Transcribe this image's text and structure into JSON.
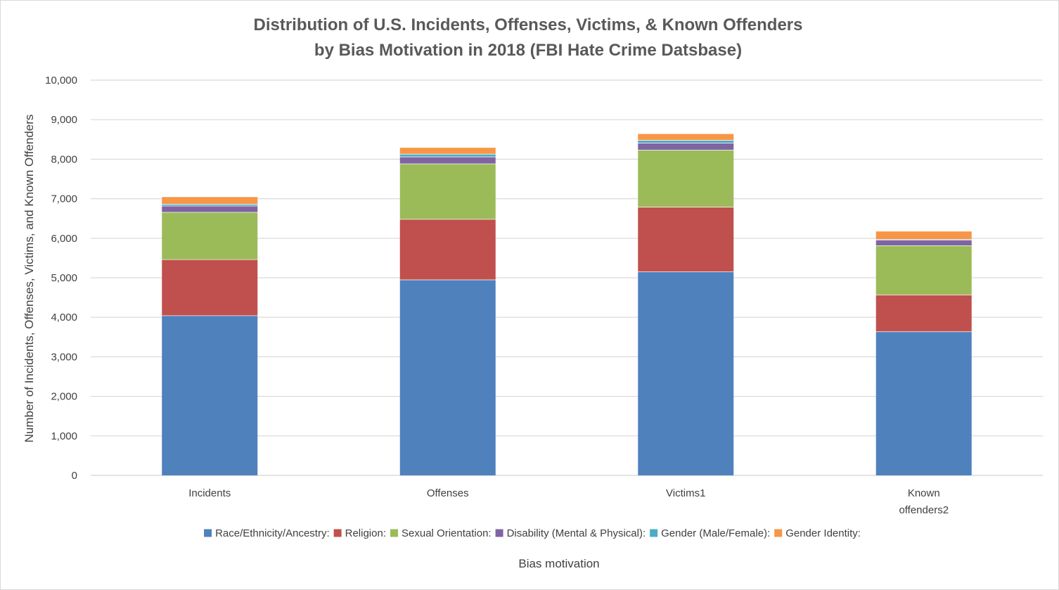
{
  "chart_data": {
    "type": "bar",
    "stacked": true,
    "title": "Distribution of  U.S. Incidents, Offenses, Victims, & Known Offenders",
    "subtitle": "by Bias Motivation in 2018 (FBI Hate Crime Datsbase)",
    "xlabel": "Bias motivation",
    "ylabel": "Number of Incidents, Offenses, Victims, and Known Offenders",
    "ylim": [
      0,
      10000
    ],
    "y_ticks": [
      0,
      1000,
      2000,
      3000,
      4000,
      5000,
      6000,
      7000,
      8000,
      9000,
      10000
    ],
    "y_tick_labels": [
      "0",
      "1,000",
      "2,000",
      "3,000",
      "4,000",
      "5,000",
      "6,000",
      "7,000",
      "8,000",
      "9,000",
      "10,000"
    ],
    "grid": true,
    "legend_position": "bottom",
    "categories": [
      [
        "Incidents"
      ],
      [
        "Offenses"
      ],
      [
        "Victims1"
      ],
      [
        "Known",
        "offenders2"
      ]
    ],
    "series": [
      {
        "name": "Race/Ethnicity/Ancestry:",
        "color": "#4F81BD",
        "values": [
          4047,
          4954,
          5155,
          3641
        ]
      },
      {
        "name": "Religion:",
        "color": "#C0504D",
        "values": [
          1419,
          1531,
          1638,
          932
        ]
      },
      {
        "name": "Sexual Orientation:",
        "color": "#9BBB59",
        "values": [
          1196,
          1404,
          1445,
          1245
        ]
      },
      {
        "name": "Disability (Mental & Physical):",
        "color": "#8064A2",
        "values": [
          159,
          177,
          177,
          144
        ]
      },
      {
        "name": "Gender (Male/Female):",
        "color": "#4BACC6",
        "values": [
          46,
          69,
          69,
          16
        ]
      },
      {
        "name": "Gender Identity:",
        "color": "#F79646",
        "values": [
          189,
          167,
          168,
          207
        ]
      }
    ]
  }
}
